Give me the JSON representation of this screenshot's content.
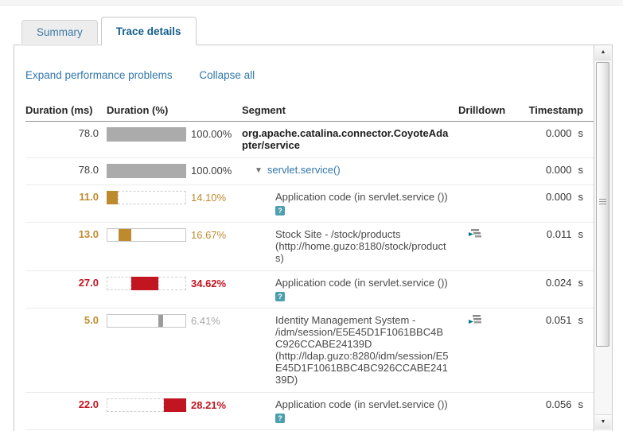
{
  "tabs": [
    {
      "label": "Summary",
      "active": false
    },
    {
      "label": "Trace details",
      "active": true
    }
  ],
  "toolbar": {
    "expand_label": "Expand performance problems",
    "collapse_label": "Collapse all"
  },
  "icons": {
    "help_glyph": "?",
    "collapse_triangle": "▼",
    "scroll_up": "▲",
    "scroll_down": "▼"
  },
  "colors": {
    "bar_gray": "#ababab",
    "bar_amber": "#bd8b2e",
    "bar_red": "#c11622",
    "bar_small_gray": "#9c9c9c",
    "link_blue": "#3177a8",
    "active_tab_blue": "#135e8c"
  },
  "table": {
    "headers": {
      "duration_ms": "Duration (ms)",
      "duration_pct": "Duration (%)",
      "segment": "Segment",
      "drilldown": "Drilldown",
      "timestamp": "Timestamp"
    },
    "unit_seconds": "s",
    "rows": [
      {
        "duration": "78.0",
        "pct": "100.00%",
        "segment": "org.apache.catalina.connector.CoyoteAdapter/service",
        "timestamp": "0.000",
        "bar": {
          "type": "full",
          "color": "#ababab"
        }
      },
      {
        "duration": "78.0",
        "pct": "100.00%",
        "segment": "servlet.service()",
        "timestamp": "0.000",
        "bar": {
          "type": "full",
          "color": "#ababab"
        }
      },
      {
        "duration": "11.0",
        "pct": "14.10%",
        "segment": "Application code (in servlet.service ())",
        "timestamp": "0.000",
        "bar": {
          "type": "timeline-dashed",
          "color": "#bd8b2e",
          "offset_pct": 0,
          "width_pct": 14.1
        }
      },
      {
        "duration": "13.0",
        "pct": "16.67%",
        "segment": "Stock Site - /stock/products (http://home.guzo:8180/stock/products)",
        "timestamp": "0.011",
        "bar": {
          "type": "timeline-boxed",
          "color": "#bd8b2e",
          "offset_pct": 14.1,
          "width_pct": 16.67
        }
      },
      {
        "duration": "27.0",
        "pct": "34.62%",
        "segment": "Application code (in servlet.service ())",
        "timestamp": "0.024",
        "bar": {
          "type": "timeline-dashed",
          "color": "#c11622",
          "offset_pct": 30.77,
          "width_pct": 34.62
        }
      },
      {
        "duration": "5.0",
        "pct": "6.41%",
        "segment": "Identity Management System - /idm/session/E5E45D1F1061BBC4BC926CCABE24139D (http://ldap.guzo:8280/idm/session/E5E45D1F1061BBC4BC926CCABE24139D)",
        "timestamp": "0.051",
        "bar": {
          "type": "timeline-boxed",
          "color": "#9c9c9c",
          "offset_pct": 65.38,
          "width_pct": 6.41
        }
      },
      {
        "duration": "22.0",
        "pct": "28.21%",
        "segment": "Application code (in servlet.service ())",
        "timestamp": "0.056",
        "bar": {
          "type": "timeline-dashed",
          "color": "#c11622",
          "offset_pct": 71.79,
          "width_pct": 28.21
        }
      }
    ]
  }
}
